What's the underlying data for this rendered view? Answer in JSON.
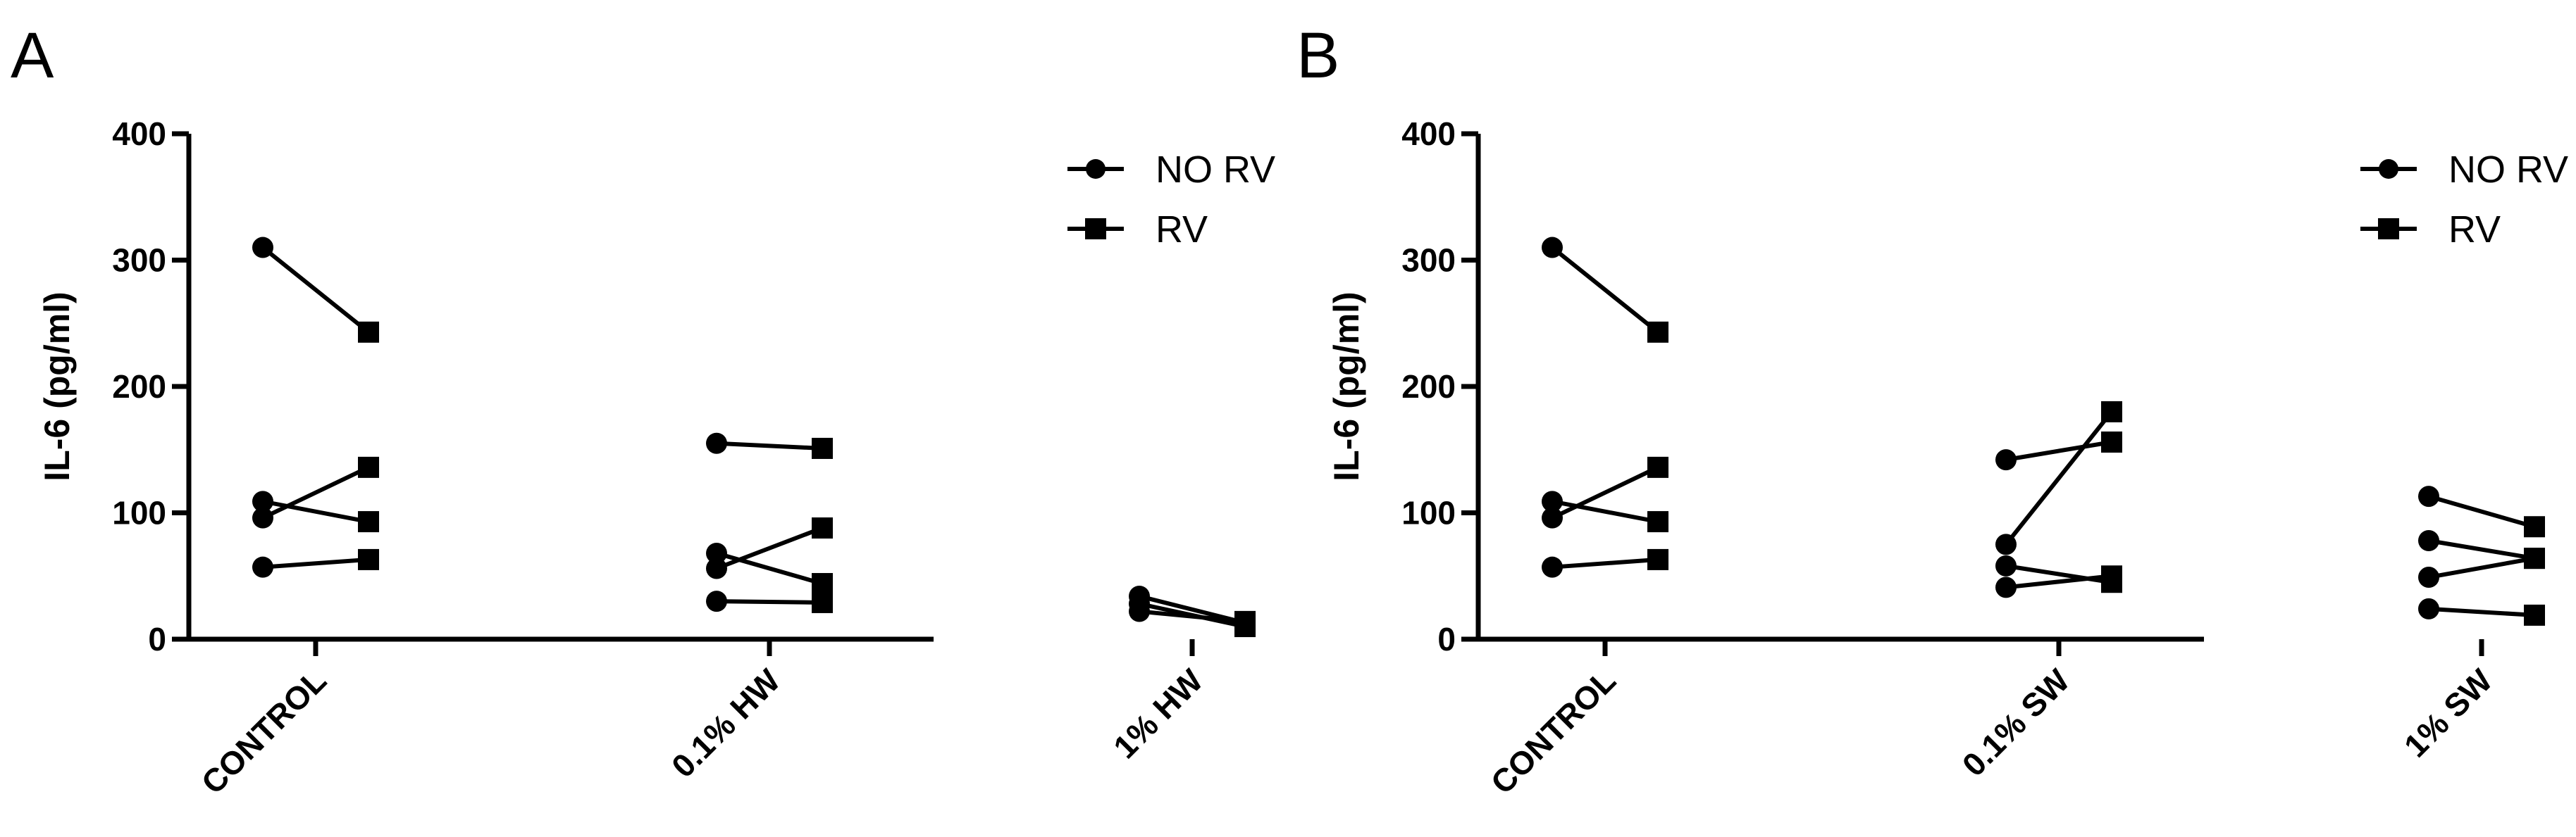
{
  "colors": {
    "ink": "#000000",
    "background": "#ffffff"
  },
  "chart_data": [
    {
      "panel": "A",
      "type": "line",
      "ylabel": "IL-6 (pg/ml)",
      "xlabel": "",
      "ylim": [
        0,
        400
      ],
      "yticks": [
        "0",
        "100",
        "200",
        "300",
        "400"
      ],
      "categories": [
        "CONTROL",
        "0.1% HW",
        "1% HW"
      ],
      "legend": {
        "placement": "top-right",
        "entries": [
          {
            "label": "NO RV",
            "marker": "circle"
          },
          {
            "label": "RV",
            "marker": "square"
          }
        ]
      },
      "pairs": [
        {
          "category": "CONTROL",
          "no_rv": 310,
          "rv": 243
        },
        {
          "category": "CONTROL",
          "no_rv": 109,
          "rv": 93
        },
        {
          "category": "CONTROL",
          "no_rv": 96,
          "rv": 136
        },
        {
          "category": "CONTROL",
          "no_rv": 57,
          "rv": 63
        },
        {
          "category": "0.1% HW",
          "no_rv": 155,
          "rv": 151
        },
        {
          "category": "0.1% HW",
          "no_rv": 68,
          "rv": 44
        },
        {
          "category": "0.1% HW",
          "no_rv": 56,
          "rv": 88
        },
        {
          "category": "0.1% HW",
          "no_rv": 30,
          "rv": 29
        },
        {
          "category": "1% HW",
          "no_rv": 34,
          "rv": 13
        },
        {
          "category": "1% HW",
          "no_rv": 28,
          "rv": 10
        },
        {
          "category": "1% HW",
          "no_rv": 22,
          "rv": 14
        }
      ]
    },
    {
      "panel": "B",
      "type": "line",
      "ylabel": "IL-6 (pg/ml)",
      "xlabel": "",
      "ylim": [
        0,
        400
      ],
      "yticks": [
        "0",
        "100",
        "200",
        "300",
        "400"
      ],
      "categories": [
        "CONTROL",
        "0.1% SW",
        "1% SW"
      ],
      "legend": {
        "placement": "top-right",
        "entries": [
          {
            "label": "NO RV",
            "marker": "circle"
          },
          {
            "label": "RV",
            "marker": "square"
          }
        ]
      },
      "pairs": [
        {
          "category": "CONTROL",
          "no_rv": 310,
          "rv": 243
        },
        {
          "category": "CONTROL",
          "no_rv": 109,
          "rv": 93
        },
        {
          "category": "CONTROL",
          "no_rv": 96,
          "rv": 136
        },
        {
          "category": "CONTROL",
          "no_rv": 57,
          "rv": 63
        },
        {
          "category": "0.1% SW",
          "no_rv": 142,
          "rv": 156
        },
        {
          "category": "0.1% SW",
          "no_rv": 75,
          "rv": 180
        },
        {
          "category": "0.1% SW",
          "no_rv": 58,
          "rv": 45
        },
        {
          "category": "0.1% SW",
          "no_rv": 41,
          "rv": 50
        },
        {
          "category": "1% SW",
          "no_rv": 113,
          "rv": 89
        },
        {
          "category": "1% SW",
          "no_rv": 78,
          "rv": 64
        },
        {
          "category": "1% SW",
          "no_rv": 49,
          "rv": 64
        },
        {
          "category": "1% SW",
          "no_rv": 24,
          "rv": 19
        }
      ]
    }
  ]
}
